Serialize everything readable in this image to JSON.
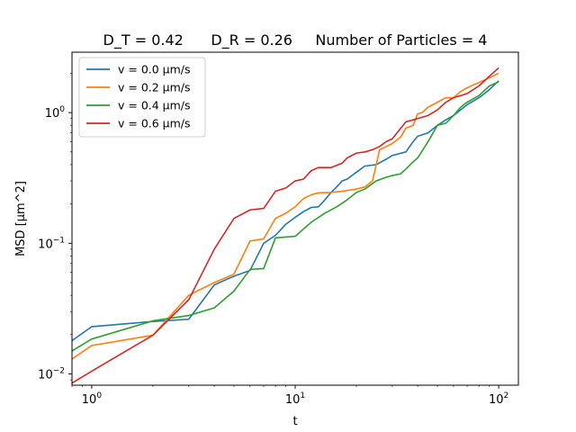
{
  "chart_data": {
    "type": "line",
    "title": "D_T = 0.42      D_R = 0.26     Number of Particles = 4",
    "xlabel": "t",
    "ylabel": "MSD [μm^2]",
    "xscale": "log",
    "yscale": "log",
    "xlim": [
      0.8,
      125
    ],
    "ylim": [
      0.0082,
      2.9
    ],
    "xticks": [
      {
        "value": 1,
        "base": "10",
        "exp": "0"
      },
      {
        "value": 10,
        "base": "10",
        "exp": "1"
      },
      {
        "value": 100,
        "base": "10",
        "exp": "2"
      }
    ],
    "yticks": [
      {
        "value": 0.01,
        "base": "10",
        "exp": "−2"
      },
      {
        "value": 0.1,
        "base": "10",
        "exp": "−1"
      },
      {
        "value": 1,
        "base": "10",
        "exp": "0"
      }
    ],
    "grid": false,
    "legend_position": "top-left",
    "series": [
      {
        "name": "v = 0.0 μm/s",
        "color": "#1f77b4",
        "points": [
          [
            0.8,
            0.018
          ],
          [
            1,
            0.023
          ],
          [
            2,
            0.0252
          ],
          [
            3,
            0.0262
          ],
          [
            4,
            0.048
          ],
          [
            5,
            0.056
          ],
          [
            6,
            0.062
          ],
          [
            7,
            0.1
          ],
          [
            8,
            0.115
          ],
          [
            9,
            0.14
          ],
          [
            10,
            0.158
          ],
          [
            11,
            0.175
          ],
          [
            12,
            0.188
          ],
          [
            13,
            0.19
          ],
          [
            14,
            0.215
          ],
          [
            15,
            0.245
          ],
          [
            16,
            0.27
          ],
          [
            17,
            0.3
          ],
          [
            18,
            0.31
          ],
          [
            20,
            0.35
          ],
          [
            22,
            0.39
          ],
          [
            25,
            0.4
          ],
          [
            28,
            0.44
          ],
          [
            30,
            0.47
          ],
          [
            35,
            0.5
          ],
          [
            38,
            0.6
          ],
          [
            40,
            0.66
          ],
          [
            45,
            0.7
          ],
          [
            50,
            0.8
          ],
          [
            55,
            0.88
          ],
          [
            60,
            0.95
          ],
          [
            65,
            1.05
          ],
          [
            70,
            1.15
          ],
          [
            80,
            1.3
          ],
          [
            90,
            1.5
          ],
          [
            100,
            1.75
          ]
        ]
      },
      {
        "name": "v = 0.2 μm/s",
        "color": "#ff7f0e",
        "points": [
          [
            0.8,
            0.013
          ],
          [
            1,
            0.0165
          ],
          [
            2,
            0.0198
          ],
          [
            3,
            0.04
          ],
          [
            4,
            0.05
          ],
          [
            5,
            0.058
          ],
          [
            6,
            0.104
          ],
          [
            7,
            0.108
          ],
          [
            8,
            0.155
          ],
          [
            9,
            0.17
          ],
          [
            10,
            0.19
          ],
          [
            11,
            0.22
          ],
          [
            12,
            0.235
          ],
          [
            13,
            0.243
          ],
          [
            15,
            0.245
          ],
          [
            17,
            0.25
          ],
          [
            20,
            0.26
          ],
          [
            22,
            0.27
          ],
          [
            24,
            0.3
          ],
          [
            26,
            0.52
          ],
          [
            28,
            0.55
          ],
          [
            30,
            0.58
          ],
          [
            33,
            0.65
          ],
          [
            35,
            0.76
          ],
          [
            38,
            0.8
          ],
          [
            40,
            0.98
          ],
          [
            42,
            1.0
          ],
          [
            45,
            1.1
          ],
          [
            50,
            1.2
          ],
          [
            55,
            1.3
          ],
          [
            60,
            1.3
          ],
          [
            65,
            1.45
          ],
          [
            70,
            1.55
          ],
          [
            80,
            1.7
          ],
          [
            90,
            1.85
          ],
          [
            100,
            2.0
          ]
        ]
      },
      {
        "name": "v = 0.4 μm/s",
        "color": "#2ca02c",
        "points": [
          [
            0.8,
            0.015
          ],
          [
            1,
            0.0185
          ],
          [
            2,
            0.0255
          ],
          [
            3,
            0.028
          ],
          [
            4,
            0.032
          ],
          [
            5,
            0.043
          ],
          [
            6,
            0.063
          ],
          [
            7,
            0.064
          ],
          [
            8,
            0.11
          ],
          [
            10,
            0.113
          ],
          [
            12,
            0.145
          ],
          [
            14,
            0.17
          ],
          [
            16,
            0.19
          ],
          [
            18,
            0.215
          ],
          [
            20,
            0.245
          ],
          [
            22,
            0.26
          ],
          [
            25,
            0.3
          ],
          [
            28,
            0.32
          ],
          [
            30,
            0.33
          ],
          [
            33,
            0.34
          ],
          [
            35,
            0.37
          ],
          [
            38,
            0.42
          ],
          [
            40,
            0.45
          ],
          [
            45,
            0.6
          ],
          [
            50,
            0.8
          ],
          [
            55,
            0.83
          ],
          [
            60,
            0.95
          ],
          [
            65,
            1.1
          ],
          [
            70,
            1.2
          ],
          [
            80,
            1.35
          ],
          [
            90,
            1.6
          ],
          [
            100,
            1.72
          ]
        ]
      },
      {
        "name": "v = 0.6 μm/s",
        "color": "#d62728",
        "points": [
          [
            0.8,
            0.0085
          ],
          [
            1,
            0.0105
          ],
          [
            2,
            0.0198
          ],
          [
            3,
            0.037
          ],
          [
            4,
            0.09
          ],
          [
            5,
            0.155
          ],
          [
            6,
            0.18
          ],
          [
            7,
            0.185
          ],
          [
            8,
            0.25
          ],
          [
            9,
            0.265
          ],
          [
            10,
            0.3
          ],
          [
            11,
            0.31
          ],
          [
            12,
            0.36
          ],
          [
            13,
            0.38
          ],
          [
            15,
            0.38
          ],
          [
            17,
            0.41
          ],
          [
            18,
            0.45
          ],
          [
            20,
            0.49
          ],
          [
            22,
            0.5
          ],
          [
            24,
            0.52
          ],
          [
            26,
            0.55
          ],
          [
            28,
            0.6
          ],
          [
            30,
            0.63
          ],
          [
            35,
            0.85
          ],
          [
            38,
            0.88
          ],
          [
            40,
            0.9
          ],
          [
            45,
            0.95
          ],
          [
            50,
            1.05
          ],
          [
            55,
            1.2
          ],
          [
            60,
            1.3
          ],
          [
            65,
            1.35
          ],
          [
            70,
            1.4
          ],
          [
            80,
            1.6
          ],
          [
            90,
            1.9
          ],
          [
            100,
            2.2
          ]
        ]
      }
    ]
  }
}
